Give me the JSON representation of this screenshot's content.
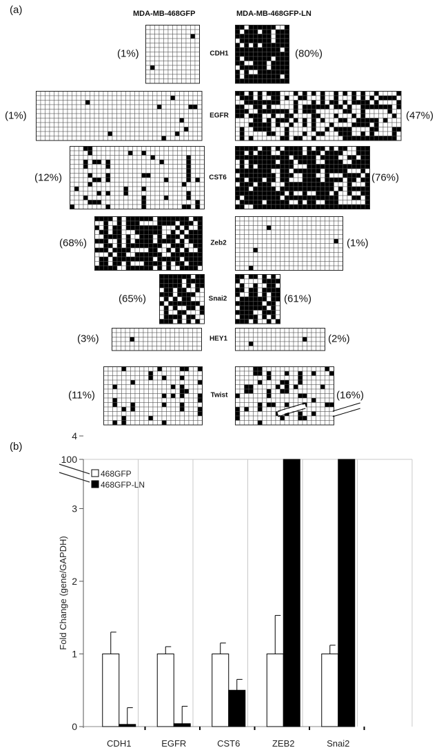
{
  "panel_a": {
    "label": "(a)",
    "left_header": "MDA-MB-468GFP",
    "right_header": "MDA-MB-468GFP-LN",
    "genes": [
      {
        "name": "CDH1",
        "left_pct": "(1%)",
        "right_pct": "(80%)",
        "left_methylation": 0.01,
        "right_methylation": 0.8
      },
      {
        "name": "EGFR",
        "left_pct": "(1%)",
        "right_pct": "(47%)",
        "left_methylation": 0.01,
        "right_methylation": 0.47
      },
      {
        "name": "CST6",
        "left_pct": "(12%)",
        "right_pct": "(76%)",
        "left_methylation": 0.12,
        "right_methylation": 0.76
      },
      {
        "name": "Zeb2",
        "left_pct": "(68%)",
        "right_pct": "(1%)",
        "left_methylation": 0.68,
        "right_methylation": 0.01
      },
      {
        "name": "Snai2",
        "left_pct": "(65%)",
        "right_pct": "(61%)",
        "left_methylation": 0.65,
        "right_methylation": 0.61
      },
      {
        "name": "HEY1",
        "left_pct": "(3%)",
        "right_pct": "(2%)",
        "left_methylation": 0.03,
        "right_methylation": 0.02
      },
      {
        "name": "Twist",
        "left_pct": "(11%)",
        "right_pct": "(16%)",
        "left_methylation": 0.11,
        "right_methylation": 0.16
      }
    ]
  },
  "panel_b": {
    "label": "(b)"
  },
  "chart_data": {
    "type": "bar",
    "title": "",
    "xlabel": "",
    "ylabel": "Fold Change (gene/GAPDH)",
    "categories": [
      "CDH1",
      "EGFR",
      "CST6",
      "ZEB2",
      "Snai2"
    ],
    "yticks": [
      "0",
      "1",
      "2",
      "3",
      "4",
      "100"
    ],
    "axis_break": "between 4 and 100",
    "ylim": [
      0,
      100
    ],
    "grid": "vertical lines",
    "legend_position": "top-left",
    "series": [
      {
        "name": "468GFP",
        "color": "#ffffff",
        "values": [
          1.0,
          1.0,
          1.0,
          1.0,
          1.0
        ],
        "errors": [
          0.3,
          0.1,
          0.15,
          0.53,
          0.12
        ]
      },
      {
        "name": "468GFP-LN",
        "color": "#000000",
        "values": [
          0.03,
          0.04,
          0.5,
          100,
          100
        ],
        "errors": [
          0.23,
          0.24,
          0.15,
          0,
          0
        ]
      }
    ]
  }
}
